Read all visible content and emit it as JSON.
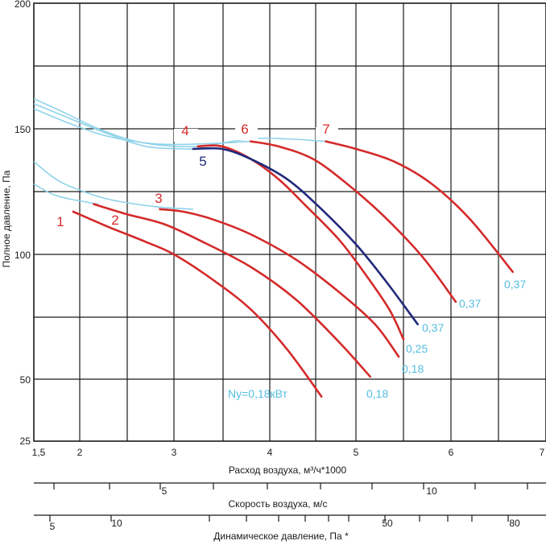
{
  "chart_data": {
    "type": "line",
    "ylabel": "Полное давление, Па",
    "xlabel": "Расход воздуха, м³/ч*1000",
    "x_ticks": [
      "1,5",
      "2",
      "3",
      "4",
      "5",
      "6",
      "7"
    ],
    "y_ticks": [
      "25",
      "50",
      "100",
      "150",
      "200"
    ],
    "secondary_axes": [
      {
        "label": "Скорость воздуха, м/с",
        "ticks": [
          "5",
          "10"
        ]
      },
      {
        "label": "Динамическое давление, Па *",
        "ticks": [
          "5",
          "10",
          "50",
          "80"
        ]
      }
    ],
    "series": [
      {
        "name": "1",
        "power_label": "Ny=0,18кВт",
        "color": "#d42a2a",
        "points": [
          [
            1.93,
            117
          ],
          [
            2.3,
            111
          ],
          [
            2.7,
            105
          ],
          [
            3.0,
            100
          ],
          [
            3.4,
            90
          ],
          [
            3.8,
            78
          ],
          [
            4.2,
            62
          ],
          [
            4.6,
            43
          ]
        ]
      },
      {
        "name": "2",
        "power_label": "0,18",
        "color": "#d42a2a",
        "points": [
          [
            2.15,
            120
          ],
          [
            2.5,
            116
          ],
          [
            2.9,
            112
          ],
          [
            3.3,
            105
          ],
          [
            3.8,
            95
          ],
          [
            4.3,
            82
          ],
          [
            4.8,
            65
          ],
          [
            5.15,
            51
          ]
        ]
      },
      {
        "name": "3",
        "power_label": "0,18",
        "color": "#d42a2a",
        "points": [
          [
            2.85,
            118
          ],
          [
            3.1,
            117
          ],
          [
            3.4,
            114
          ],
          [
            3.8,
            108
          ],
          [
            4.3,
            98
          ],
          [
            4.8,
            85
          ],
          [
            5.2,
            72
          ],
          [
            5.45,
            59
          ]
        ]
      },
      {
        "name": "4",
        "power_label": "0,25",
        "color": "#d42a2a",
        "points": [
          [
            3.25,
            143
          ],
          [
            3.5,
            143
          ],
          [
            3.8,
            138
          ],
          [
            4.1,
            130
          ],
          [
            4.4,
            120
          ],
          [
            4.8,
            106
          ],
          [
            5.1,
            92
          ],
          [
            5.35,
            78
          ],
          [
            5.5,
            66
          ]
        ]
      },
      {
        "name": "5",
        "power_label": "0,37",
        "color": "#20297a",
        "points": [
          [
            3.2,
            142
          ],
          [
            3.5,
            142
          ],
          [
            3.8,
            138
          ],
          [
            4.2,
            130
          ],
          [
            4.6,
            118
          ],
          [
            5.0,
            104
          ],
          [
            5.3,
            90
          ],
          [
            5.65,
            72
          ]
        ]
      },
      {
        "name": "6",
        "power_label": "0,37",
        "color": "#d42a2a",
        "points": [
          [
            3.8,
            145
          ],
          [
            4.1,
            143
          ],
          [
            4.5,
            138
          ],
          [
            4.9,
            128
          ],
          [
            5.3,
            115
          ],
          [
            5.7,
            99
          ],
          [
            6.05,
            81
          ]
        ]
      },
      {
        "name": "7",
        "power_label": "0,37",
        "color": "#d42a2a",
        "points": [
          [
            4.65,
            145
          ],
          [
            5.0,
            142
          ],
          [
            5.4,
            137
          ],
          [
            5.8,
            128
          ],
          [
            6.2,
            114
          ],
          [
            6.65,
            93
          ]
        ]
      }
    ],
    "light_curves": [
      {
        "color": "#8fd3ea",
        "points": [
          [
            1.5,
            137
          ],
          [
            1.7,
            131
          ],
          [
            1.9,
            127
          ],
          [
            2.3,
            122
          ],
          [
            2.8,
            119
          ],
          [
            3.2,
            118
          ]
        ]
      },
      {
        "color": "#8fd3ea",
        "points": [
          [
            1.5,
            128
          ],
          [
            1.7,
            124
          ],
          [
            1.9,
            122
          ],
          [
            2.2,
            120
          ]
        ]
      },
      {
        "color": "#8fd3ea",
        "points": [
          [
            1.5,
            162
          ],
          [
            1.8,
            157
          ],
          [
            2.2,
            150
          ],
          [
            2.6,
            145
          ],
          [
            3.0,
            143
          ],
          [
            3.3,
            143
          ]
        ]
      },
      {
        "color": "#8fd3ea",
        "points": [
          [
            1.5,
            160
          ],
          [
            1.9,
            154
          ],
          [
            2.3,
            148
          ],
          [
            2.7,
            143
          ],
          [
            3.1,
            142
          ],
          [
            3.4,
            142
          ]
        ]
      },
      {
        "color": "#8fd3ea",
        "points": [
          [
            1.5,
            158
          ],
          [
            1.9,
            152
          ],
          [
            2.3,
            147
          ],
          [
            2.8,
            144
          ],
          [
            3.3,
            144
          ],
          [
            3.8,
            145
          ]
        ]
      },
      {
        "color": "#8fd3ea",
        "points": [
          [
            3.3,
            143
          ],
          [
            3.8,
            146
          ],
          [
            4.2,
            146
          ],
          [
            4.65,
            145
          ]
        ]
      }
    ],
    "xlim": [
      1.5,
      7
    ],
    "ylim": [
      25,
      200
    ],
    "grid": true,
    "colors": {
      "main_curve": "#d42a2a",
      "highlight_curve": "#20297a",
      "light_curve": "#8fd3ea",
      "power_label": "#55bde0",
      "grid": "#1a1a1a"
    }
  }
}
